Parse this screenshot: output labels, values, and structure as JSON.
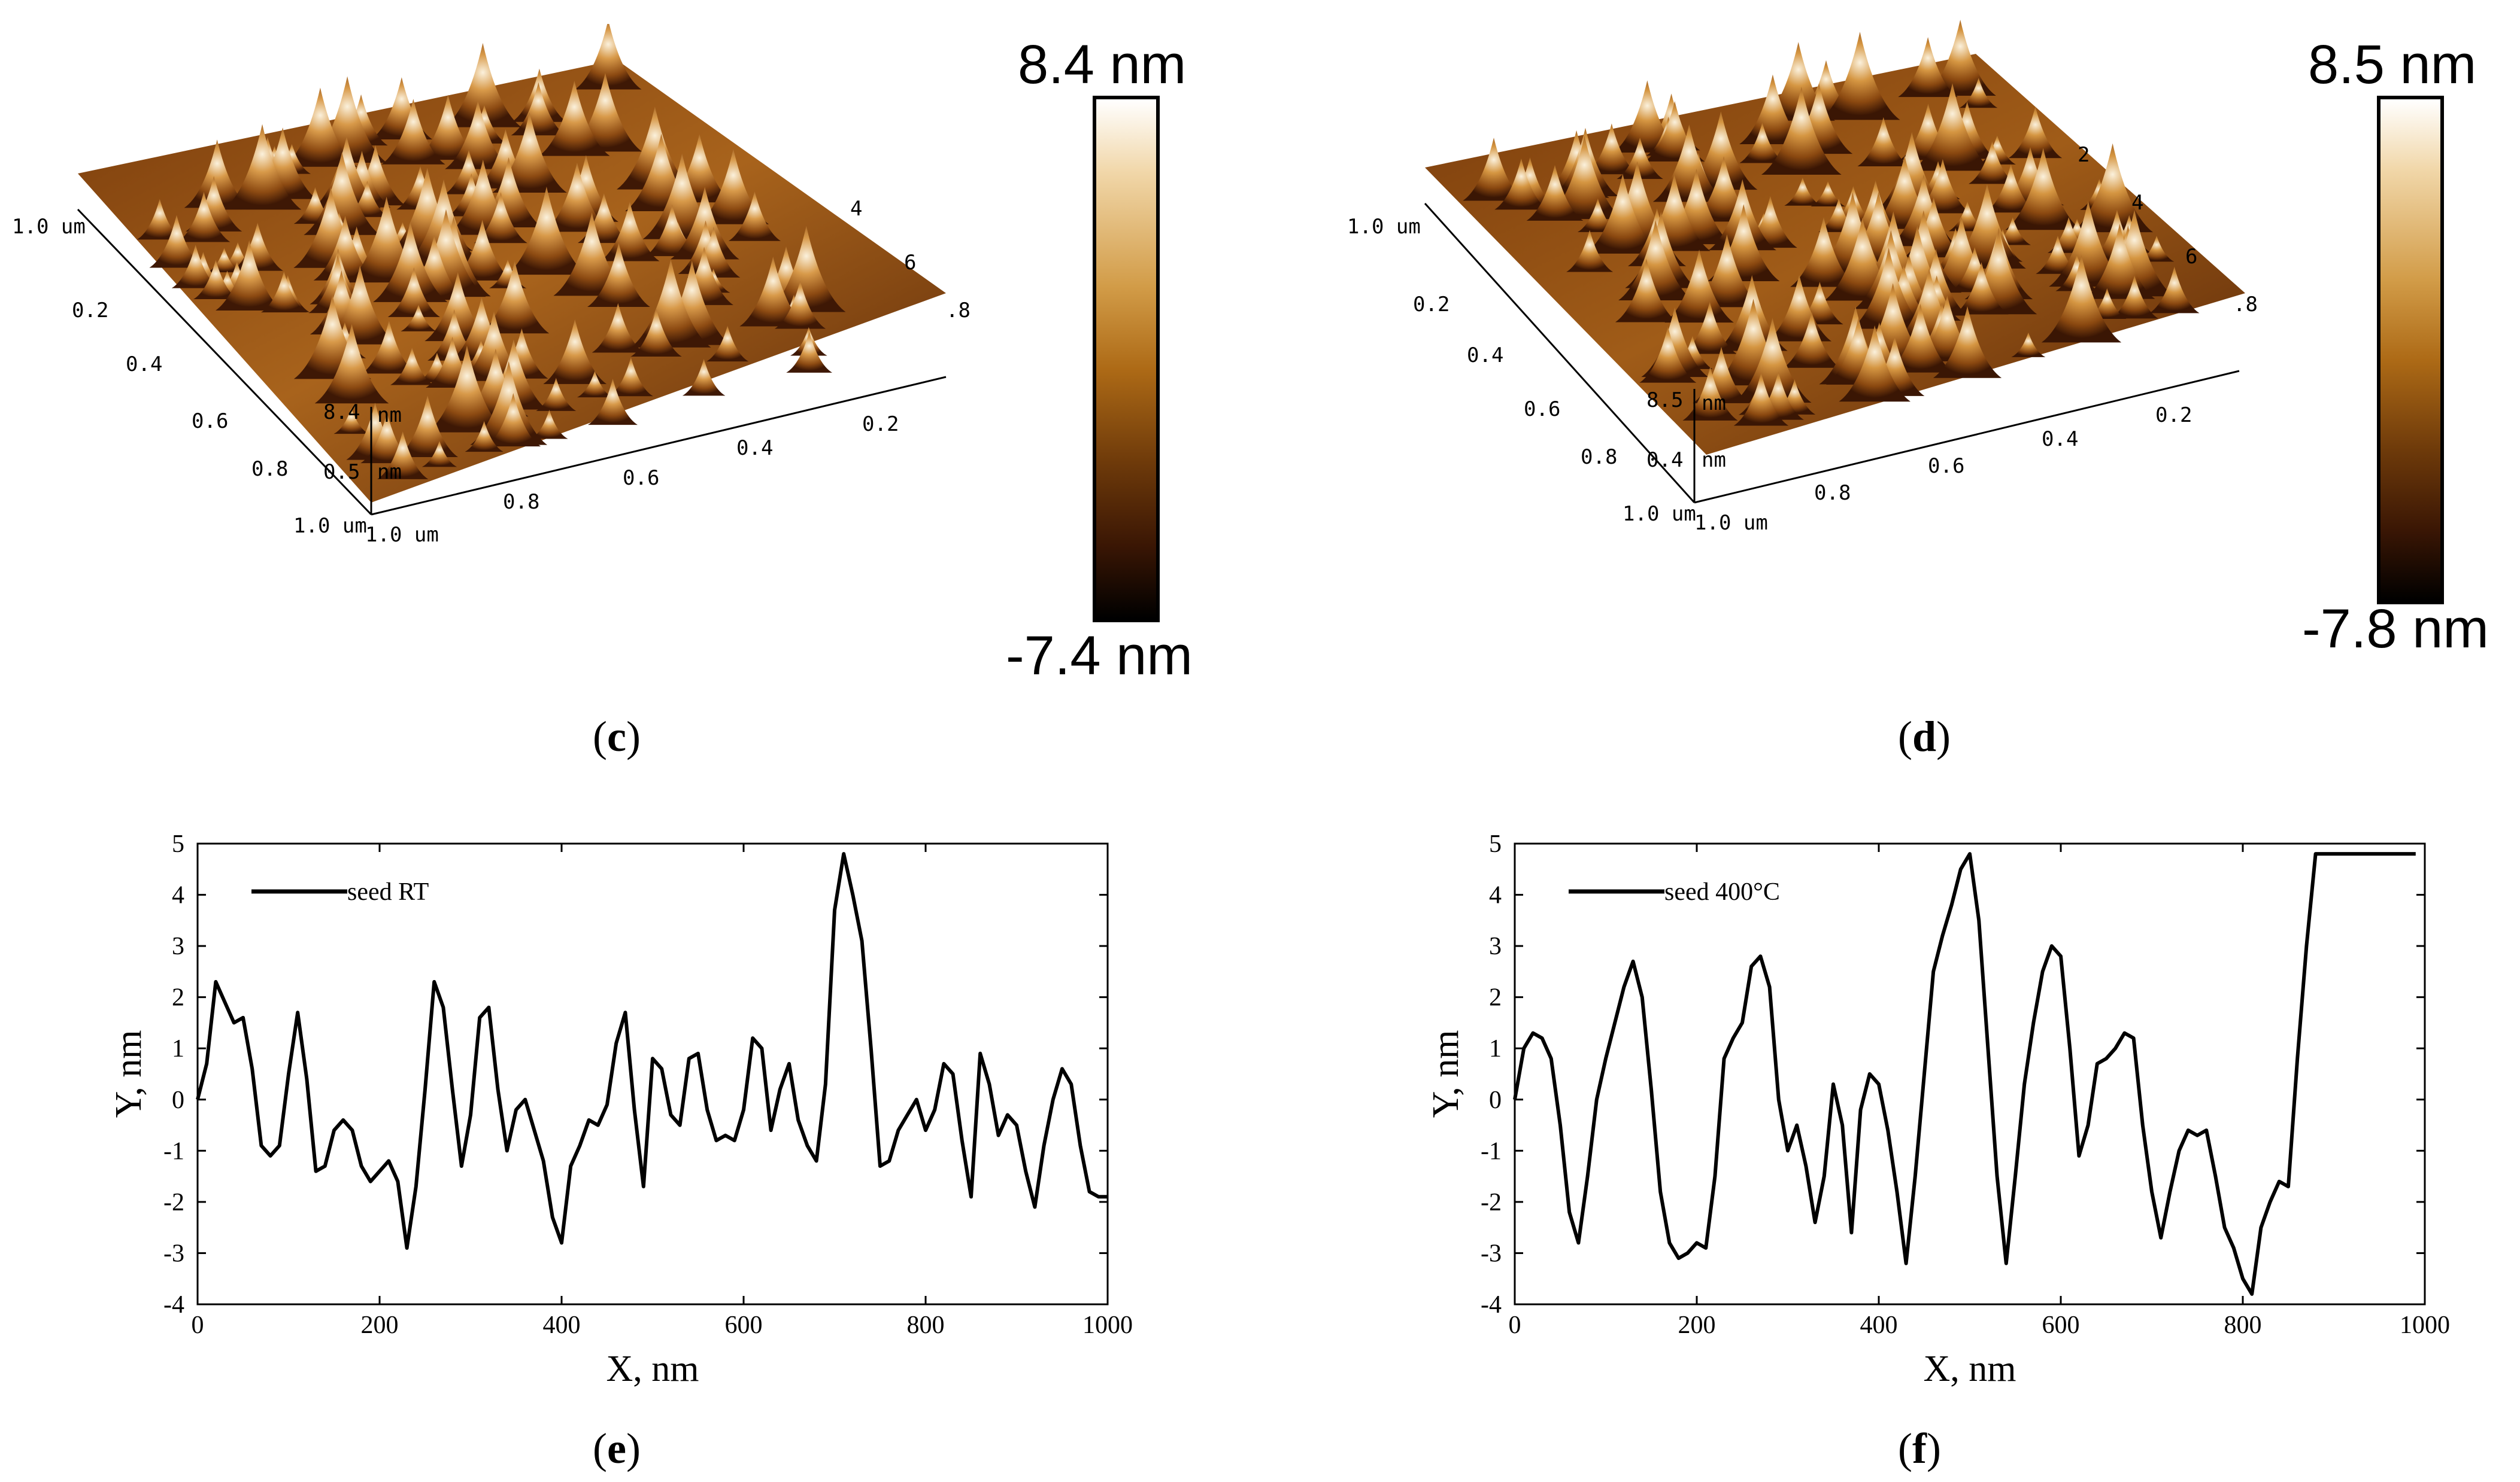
{
  "panels": {
    "c": {
      "caption_open": "(",
      "caption_letter": "c",
      "caption_close": ")",
      "colorbar": {
        "max_label": "8.4 nm",
        "min_label": "-7.4 nm"
      },
      "axis_ticks": [
        "1.0 um",
        "0.2",
        "0.4",
        "0.6",
        "0.8",
        "1.0 um",
        "1.0 um",
        "0.8",
        "0.6",
        "0.4",
        "0.2",
        "8.4",
        "0.5",
        "nm",
        "nm",
        "4",
        "6",
        ".8"
      ]
    },
    "d": {
      "caption_open": "(",
      "caption_letter": "d",
      "caption_close": ")",
      "colorbar": {
        "max_label": "8.5 nm",
        "min_label": "-7.8 nm"
      },
      "axis_ticks": [
        "1.0 um",
        "0.2",
        "0.4",
        "0.6",
        "0.8",
        "1.0 um",
        "1.0 um",
        "0.8",
        "0.6",
        "0.4",
        "0.2",
        "8.5",
        "0.4",
        "nm",
        "nm",
        "2",
        "4",
        "6",
        ".8"
      ]
    },
    "e": {
      "caption_open": "(",
      "caption_letter": "e",
      "caption_close": ")"
    },
    "f": {
      "caption_open": "(",
      "caption_letter": "f",
      "caption_close": ")"
    }
  },
  "colors": {
    "line": "#000000",
    "afm_light": "#f4e2c0",
    "afm_mid": "#c07a28",
    "afm_dark": "#4a1e06"
  },
  "chart_data": [
    {
      "type": "line",
      "title": "",
      "xlabel": "X, nm",
      "ylabel": "Y, nm",
      "xlim": [
        0,
        1000
      ],
      "ylim": [
        -4,
        5
      ],
      "xticks": [
        0,
        200,
        400,
        600,
        800,
        1000
      ],
      "yticks": [
        -4,
        -3,
        -2,
        -1,
        0,
        1,
        2,
        3,
        4,
        5
      ],
      "legend": "top-left",
      "series": [
        {
          "name": "seed RT",
          "x": [
            0,
            10,
            20,
            30,
            40,
            50,
            60,
            70,
            80,
            90,
            100,
            110,
            120,
            130,
            140,
            150,
            160,
            170,
            180,
            190,
            200,
            210,
            220,
            230,
            240,
            250,
            260,
            270,
            280,
            290,
            300,
            310,
            320,
            330,
            340,
            350,
            360,
            370,
            380,
            390,
            400,
            410,
            420,
            430,
            440,
            450,
            460,
            470,
            480,
            490,
            500,
            510,
            520,
            530,
            540,
            550,
            560,
            570,
            580,
            590,
            600,
            610,
            620,
            630,
            640,
            650,
            660,
            670,
            680,
            690,
            700,
            710,
            720,
            730,
            740,
            750,
            760,
            770,
            780,
            790,
            800,
            810,
            820,
            830,
            840,
            850,
            860,
            870,
            880,
            890,
            900,
            910,
            920,
            930,
            940,
            950,
            960,
            970,
            980,
            990,
            1000
          ],
          "values": [
            0,
            0.7,
            2.3,
            1.9,
            1.5,
            1.6,
            0.6,
            -0.9,
            -1.1,
            -0.9,
            0.5,
            1.7,
            0.4,
            -1.4,
            -1.3,
            -0.6,
            -0.4,
            -0.6,
            -1.3,
            -1.6,
            -1.4,
            -1.2,
            -1.6,
            -2.9,
            -1.7,
            0.2,
            2.3,
            1.8,
            0.2,
            -1.3,
            -0.3,
            1.6,
            1.8,
            0.2,
            -1.0,
            -0.2,
            0,
            -0.6,
            -1.2,
            -2.3,
            -2.8,
            -1.3,
            -0.9,
            -0.4,
            -0.5,
            -0.1,
            1.1,
            1.7,
            -0.2,
            -1.7,
            0.8,
            0.6,
            -0.3,
            -0.5,
            0.8,
            0.9,
            -0.2,
            -0.8,
            -0.7,
            -0.8,
            -0.2,
            1.2,
            1.0,
            -0.6,
            0.2,
            0.7,
            -0.4,
            -0.9,
            -1.2,
            0.3,
            3.7,
            4.8,
            4.0,
            3.1,
            1.0,
            -1.3,
            -1.2,
            -0.6,
            -0.3,
            0,
            -0.6,
            -0.2,
            0.7,
            0.5,
            -0.8,
            -1.9,
            0.9,
            0.3,
            -0.7,
            -0.3,
            -0.5,
            -1.4,
            -2.1,
            -0.9,
            0,
            0.6,
            0.3,
            -0.9,
            -1.8,
            -1.9,
            -1.9
          ]
        }
      ]
    },
    {
      "type": "line",
      "title": "",
      "xlabel": "X, nm",
      "ylabel": "Y, nm",
      "xlim": [
        0,
        1000
      ],
      "ylim": [
        -4,
        5
      ],
      "xticks": [
        0,
        200,
        400,
        600,
        800,
        1000
      ],
      "yticks": [
        -4,
        -3,
        -2,
        -1,
        0,
        1,
        2,
        3,
        4,
        5
      ],
      "legend": "top-left",
      "series": [
        {
          "name": "seed 400°C",
          "x": [
            0,
            10,
            20,
            30,
            40,
            50,
            60,
            70,
            80,
            90,
            100,
            110,
            120,
            130,
            140,
            150,
            160,
            170,
            180,
            190,
            200,
            210,
            220,
            230,
            240,
            250,
            260,
            270,
            280,
            290,
            300,
            310,
            320,
            330,
            340,
            350,
            360,
            370,
            380,
            390,
            400,
            410,
            420,
            430,
            440,
            450,
            460,
            470,
            480,
            490,
            500,
            510,
            520,
            530,
            540,
            550,
            560,
            570,
            580,
            590,
            600,
            610,
            620,
            630,
            640,
            650,
            660,
            670,
            680,
            690,
            700,
            710,
            720,
            730,
            740,
            750,
            760,
            770,
            780,
            790,
            800,
            810,
            820,
            830,
            840,
            850,
            860,
            870,
            880,
            890,
            900,
            910,
            920,
            930,
            940,
            950,
            960,
            970,
            980,
            990
          ],
          "values": [
            0,
            1.0,
            1.3,
            1.2,
            0.8,
            -0.5,
            -2.2,
            -2.8,
            -1.5,
            0,
            0.8,
            1.5,
            2.2,
            2.7,
            2.0,
            0.2,
            -1.8,
            -2.8,
            -3.1,
            -3.0,
            -2.8,
            -2.9,
            -1.5,
            0.8,
            1.2,
            1.5,
            2.6,
            2.8,
            2.2,
            0,
            -1.0,
            -0.5,
            -1.3,
            -2.4,
            -1.5,
            0.3,
            -0.5,
            -2.6,
            -0.2,
            0.5,
            0.3,
            -0.6,
            -1.8,
            -3.2,
            -1.5,
            0.5,
            2.5,
            3.2,
            3.8,
            4.5,
            4.8,
            3.5,
            1.0,
            -1.5,
            -3.2,
            -1.5,
            0.3,
            1.5,
            2.5,
            3.0,
            2.8,
            1.0,
            -1.1,
            -0.5,
            0.7,
            0.8,
            1.0,
            1.3,
            1.2,
            -0.5,
            -1.8,
            -2.7,
            -1.8,
            -1.0,
            -0.6,
            -0.7,
            -0.6,
            -1.5,
            -2.5,
            -2.9,
            -3.5,
            -3.8,
            -2.5,
            -2.0,
            -1.6,
            -1.7,
            0.8,
            3.0,
            4.8,
            4.8,
            4.8,
            4.8,
            4.8,
            4.8,
            4.8,
            4.8,
            4.8,
            4.8,
            4.8,
            4.8
          ]
        }
      ]
    }
  ]
}
